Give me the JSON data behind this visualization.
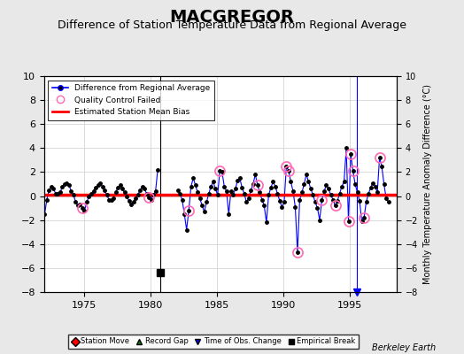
{
  "title": "MACGREGOR",
  "subtitle": "Difference of Station Temperature Data from Regional Average",
  "ylabel": "Monthly Temperature Anomaly Difference (°C)",
  "xlim": [
    1972.0,
    1998.5
  ],
  "ylim": [
    -8,
    10
  ],
  "yticks": [
    -8,
    -6,
    -4,
    -2,
    0,
    2,
    4,
    6,
    8,
    10
  ],
  "xticks": [
    1975,
    1980,
    1985,
    1990,
    1995
  ],
  "background_color": "#e8e8e8",
  "plot_bg_color": "#ffffff",
  "grid_color": "#cccccc",
  "title_fontsize": 14,
  "subtitle_fontsize": 9,
  "berkeley_earth_label": "Berkeley Earth",
  "empirical_break_x": 1980.75,
  "empirical_break_y": -6.4,
  "vertical_line1_x": 1980.75,
  "vertical_line2_x": 1995.5,
  "bias_line_y": 0.15,
  "seg1_x": [
    1972.042,
    1972.208,
    1972.375,
    1972.542,
    1972.708,
    1972.875,
    1973.042,
    1973.208,
    1973.375,
    1973.542,
    1973.708,
    1973.875,
    1974.042,
    1974.208,
    1974.375,
    1974.542,
    1974.708,
    1974.875,
    1975.042,
    1975.208,
    1975.375,
    1975.542,
    1975.708,
    1975.875,
    1976.042,
    1976.208,
    1976.375,
    1976.542,
    1976.708,
    1976.875,
    1977.042,
    1977.208,
    1977.375,
    1977.542,
    1977.708,
    1977.875,
    1978.042,
    1978.208,
    1978.375,
    1978.542,
    1978.708,
    1978.875,
    1979.042,
    1979.208,
    1979.375,
    1979.542,
    1979.708,
    1979.875,
    1980.042,
    1980.208,
    1980.375,
    1980.542
  ],
  "seg1_y": [
    -1.5,
    -0.3,
    0.5,
    0.8,
    0.6,
    0.2,
    0.2,
    0.3,
    0.8,
    1.0,
    1.1,
    0.9,
    0.4,
    0.1,
    -0.5,
    -0.8,
    -0.7,
    -1.0,
    -1.2,
    -0.5,
    0.0,
    0.2,
    0.4,
    0.7,
    0.9,
    1.1,
    0.8,
    0.5,
    0.1,
    -0.3,
    -0.3,
    -0.2,
    0.3,
    0.7,
    0.9,
    0.6,
    0.3,
    0.0,
    -0.4,
    -0.7,
    -0.5,
    -0.2,
    0.1,
    0.5,
    0.8,
    0.6,
    0.2,
    -0.1,
    -0.3,
    0.1,
    0.4,
    2.2
  ],
  "seg2_x": [
    1982.042,
    1982.208,
    1982.375,
    1982.542,
    1982.708,
    1982.875,
    1983.042,
    1983.208,
    1983.375,
    1983.542,
    1983.708,
    1983.875,
    1984.042,
    1984.208,
    1984.375,
    1984.542,
    1984.708,
    1984.875,
    1985.042,
    1985.208,
    1985.375,
    1985.542,
    1985.708,
    1985.875,
    1986.042,
    1986.208,
    1986.375,
    1986.542,
    1986.708,
    1986.875,
    1987.042,
    1987.208,
    1987.375,
    1987.542,
    1987.708,
    1987.875,
    1988.042,
    1988.208,
    1988.375,
    1988.542,
    1988.708,
    1988.875,
    1989.042,
    1989.208,
    1989.375,
    1989.542,
    1989.708,
    1989.875,
    1990.042,
    1990.208,
    1990.375,
    1990.542,
    1990.708,
    1990.875,
    1991.042,
    1991.208,
    1991.375,
    1991.542,
    1991.708,
    1991.875,
    1992.042,
    1992.208,
    1992.375,
    1992.542,
    1992.708,
    1992.875,
    1993.042,
    1993.208,
    1993.375,
    1993.542,
    1993.708,
    1993.875,
    1994.042,
    1994.208,
    1994.375,
    1994.542,
    1994.708,
    1994.875,
    1995.042,
    1995.208,
    1995.375,
    1995.542,
    1995.708,
    1995.875,
    1996.042,
    1996.208,
    1996.375,
    1996.542,
    1996.708,
    1996.875,
    1997.042,
    1997.208,
    1997.375,
    1997.542,
    1997.708,
    1997.875
  ],
  "seg2_y": [
    0.5,
    0.2,
    -0.3,
    -1.5,
    -2.8,
    -1.2,
    0.8,
    1.5,
    0.9,
    0.3,
    -0.2,
    -0.8,
    -1.3,
    -0.5,
    0.2,
    0.8,
    1.2,
    0.6,
    0.1,
    2.1,
    2.0,
    0.8,
    0.4,
    -1.5,
    0.4,
    0.1,
    0.6,
    1.3,
    1.5,
    0.7,
    0.2,
    -0.5,
    -0.2,
    0.5,
    1.0,
    1.8,
    0.9,
    0.3,
    -0.3,
    -0.8,
    -2.2,
    0.1,
    0.7,
    1.2,
    0.8,
    0.2,
    -0.4,
    -0.9,
    -0.5,
    2.5,
    2.1,
    1.2,
    0.4,
    -0.9,
    -4.7,
    -0.3,
    0.3,
    1.0,
    1.8,
    1.2,
    0.6,
    0.1,
    -0.5,
    -1.0,
    -2.0,
    -0.3,
    0.4,
    0.9,
    0.6,
    0.1,
    -0.3,
    -0.8,
    -0.4,
    0.2,
    0.8,
    1.2,
    4.0,
    -2.1,
    3.5,
    2.1,
    1.0,
    0.3,
    -0.4,
    -2.1,
    -1.8,
    -0.5,
    0.2,
    0.7,
    1.1,
    0.8,
    0.3,
    3.2,
    2.5,
    1.0,
    -0.2,
    -0.5
  ],
  "qc_failed_indices_seg1": [
    17,
    47
  ],
  "qc_failed_x_extra": [
    1982.875,
    1985.208,
    1988.042,
    1990.208,
    1990.375,
    1991.042,
    1992.875,
    1993.875,
    1994.875,
    1995.042,
    1995.208,
    1996.042,
    1997.208
  ],
  "qc_failed_y_extra": [
    -1.2,
    2.1,
    0.9,
    2.5,
    2.1,
    -4.7,
    -0.3,
    -0.8,
    -2.1,
    3.5,
    2.1,
    -1.8,
    3.2
  ]
}
